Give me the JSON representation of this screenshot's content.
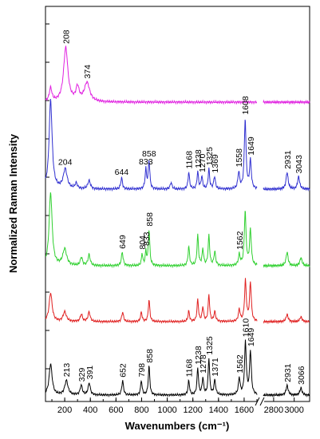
{
  "chart_data": {
    "type": "line",
    "title": "",
    "xlabel": "Wavenumbers (cm⁻¹)",
    "ylabel": "Normalized Raman Intensity",
    "x_ticks_left": [
      "200",
      "400",
      "600",
      "800",
      "1000",
      "1200",
      "1400",
      "1600"
    ],
    "x_ticks_right": [
      "2800",
      "3000"
    ],
    "xlim_left": [
      50,
      1700
    ],
    "xlim_right": [
      2700,
      3150
    ],
    "axis_break": true,
    "y_ticks_shown": false,
    "grid": false,
    "series": [
      {
        "color": "#e020e0",
        "baseline": 0,
        "peaks": [
          {
            "x": 90,
            "h": 0.25,
            "w": 12
          },
          {
            "x": 208,
            "h": 1.0,
            "w": 20
          },
          {
            "x": 300,
            "h": 0.25,
            "w": 15
          },
          {
            "x": 374,
            "h": 0.35,
            "w": 25
          }
        ],
        "labels": [
          {
            "x": 208,
            "text": "208",
            "rot": true
          },
          {
            "x": 374,
            "text": "374",
            "rot": true
          }
        ]
      },
      {
        "color": "#3030d0",
        "baseline": 0,
        "peaks": [
          {
            "x": 90,
            "h": 1.6,
            "w": 14
          },
          {
            "x": 204,
            "h": 0.35,
            "w": 18
          },
          {
            "x": 290,
            "h": 0.1,
            "w": 10
          },
          {
            "x": 390,
            "h": 0.15,
            "w": 12
          },
          {
            "x": 644,
            "h": 0.2,
            "w": 8
          },
          {
            "x": 833,
            "h": 0.35,
            "w": 7
          },
          {
            "x": 858,
            "h": 0.5,
            "w": 7
          },
          {
            "x": 1030,
            "h": 0.12,
            "w": 8
          },
          {
            "x": 1168,
            "h": 0.3,
            "w": 7
          },
          {
            "x": 1238,
            "h": 0.3,
            "w": 7
          },
          {
            "x": 1270,
            "h": 0.22,
            "w": 7
          },
          {
            "x": 1325,
            "h": 0.35,
            "w": 7
          },
          {
            "x": 1369,
            "h": 0.22,
            "w": 8
          },
          {
            "x": 1558,
            "h": 0.3,
            "w": 8
          },
          {
            "x": 1608,
            "h": 1.25,
            "w": 8
          },
          {
            "x": 1649,
            "h": 0.5,
            "w": 8
          },
          {
            "x": 2931,
            "h": 0.3,
            "w": 12
          },
          {
            "x": 3043,
            "h": 0.22,
            "w": 12
          }
        ],
        "labels": [
          {
            "x": 204,
            "text": "204",
            "rot": false
          },
          {
            "x": 644,
            "text": "644",
            "rot": false
          },
          {
            "x": 833,
            "text": "833",
            "rot": false
          },
          {
            "x": 858,
            "text": "858",
            "rot": false
          },
          {
            "x": 1168,
            "text": "1168",
            "rot": true
          },
          {
            "x": 1238,
            "text": "1238",
            "rot": true
          },
          {
            "x": 1270,
            "text": "1270",
            "rot": true
          },
          {
            "x": 1325,
            "text": "1325",
            "rot": true
          },
          {
            "x": 1369,
            "text": "1369",
            "rot": true
          },
          {
            "x": 1558,
            "text": "1558",
            "rot": true
          },
          {
            "x": 1608,
            "text": "1608",
            "rot": true
          },
          {
            "x": 1649,
            "text": "1649",
            "rot": true
          },
          {
            "x": 2931,
            "text": "2931",
            "rot": true
          },
          {
            "x": 3043,
            "text": "3043",
            "rot": true
          }
        ]
      },
      {
        "color": "#30d030",
        "baseline": 0,
        "peaks": [
          {
            "x": 90,
            "h": 1.35,
            "w": 14
          },
          {
            "x": 200,
            "h": 0.3,
            "w": 18
          },
          {
            "x": 330,
            "h": 0.15,
            "w": 10
          },
          {
            "x": 390,
            "h": 0.2,
            "w": 10
          },
          {
            "x": 649,
            "h": 0.25,
            "w": 8
          },
          {
            "x": 804,
            "h": 0.22,
            "w": 6
          },
          {
            "x": 833,
            "h": 0.25,
            "w": 6
          },
          {
            "x": 858,
            "h": 0.65,
            "w": 7
          },
          {
            "x": 1168,
            "h": 0.35,
            "w": 7
          },
          {
            "x": 1238,
            "h": 0.55,
            "w": 7
          },
          {
            "x": 1278,
            "h": 0.3,
            "w": 7
          },
          {
            "x": 1325,
            "h": 0.55,
            "w": 7
          },
          {
            "x": 1371,
            "h": 0.25,
            "w": 8
          },
          {
            "x": 1562,
            "h": 0.2,
            "w": 8
          },
          {
            "x": 1608,
            "h": 1.0,
            "w": 8
          },
          {
            "x": 1649,
            "h": 0.65,
            "w": 8
          },
          {
            "x": 2931,
            "h": 0.25,
            "w": 12
          },
          {
            "x": 3066,
            "h": 0.15,
            "w": 12
          }
        ],
        "labels": [
          {
            "x": 649,
            "text": "649",
            "rot": true
          },
          {
            "x": 804,
            "text": "804",
            "rot": true
          },
          {
            "x": 833,
            "text": "833",
            "rot": true
          },
          {
            "x": 858,
            "text": "858",
            "rot": true
          },
          {
            "x": 1562,
            "text": "1562",
            "rot": true
          }
        ]
      },
      {
        "color": "#e02020",
        "baseline": 0,
        "peaks": [
          {
            "x": 90,
            "h": 0.6,
            "w": 14
          },
          {
            "x": 200,
            "h": 0.2,
            "w": 15
          },
          {
            "x": 330,
            "h": 0.15,
            "w": 10
          },
          {
            "x": 390,
            "h": 0.2,
            "w": 10
          },
          {
            "x": 652,
            "h": 0.2,
            "w": 8
          },
          {
            "x": 798,
            "h": 0.2,
            "w": 7
          },
          {
            "x": 858,
            "h": 0.45,
            "w": 7
          },
          {
            "x": 1168,
            "h": 0.22,
            "w": 7
          },
          {
            "x": 1238,
            "h": 0.45,
            "w": 7
          },
          {
            "x": 1278,
            "h": 0.3,
            "w": 7
          },
          {
            "x": 1325,
            "h": 0.55,
            "w": 7
          },
          {
            "x": 1371,
            "h": 0.2,
            "w": 8
          },
          {
            "x": 1562,
            "h": 0.25,
            "w": 8
          },
          {
            "x": 1610,
            "h": 0.85,
            "w": 8
          },
          {
            "x": 1649,
            "h": 0.8,
            "w": 8
          },
          {
            "x": 2931,
            "h": 0.15,
            "w": 12
          },
          {
            "x": 3066,
            "h": 0.1,
            "w": 12
          }
        ],
        "labels": []
      },
      {
        "color": "#000000",
        "baseline": 0,
        "peaks": [
          {
            "x": 90,
            "h": 0.65,
            "w": 14
          },
          {
            "x": 213,
            "h": 0.3,
            "w": 15
          },
          {
            "x": 329,
            "h": 0.2,
            "w": 10
          },
          {
            "x": 391,
            "h": 0.25,
            "w": 10
          },
          {
            "x": 652,
            "h": 0.3,
            "w": 8
          },
          {
            "x": 798,
            "h": 0.3,
            "w": 7
          },
          {
            "x": 858,
            "h": 0.6,
            "w": 7
          },
          {
            "x": 1168,
            "h": 0.3,
            "w": 7
          },
          {
            "x": 1238,
            "h": 0.55,
            "w": 7
          },
          {
            "x": 1278,
            "h": 0.35,
            "w": 7
          },
          {
            "x": 1325,
            "h": 0.75,
            "w": 7
          },
          {
            "x": 1371,
            "h": 0.3,
            "w": 8
          },
          {
            "x": 1562,
            "h": 0.35,
            "w": 8
          },
          {
            "x": 1610,
            "h": 1.1,
            "w": 8
          },
          {
            "x": 1649,
            "h": 0.9,
            "w": 8
          },
          {
            "x": 2931,
            "h": 0.2,
            "w": 12
          },
          {
            "x": 3066,
            "h": 0.15,
            "w": 12
          }
        ],
        "labels": [
          {
            "x": 213,
            "text": "213",
            "rot": true
          },
          {
            "x": 329,
            "text": "329",
            "rot": true
          },
          {
            "x": 391,
            "text": "391",
            "rot": true
          },
          {
            "x": 652,
            "text": "652",
            "rot": true
          },
          {
            "x": 798,
            "text": "798",
            "rot": true
          },
          {
            "x": 858,
            "text": "858",
            "rot": true
          },
          {
            "x": 1168,
            "text": "1168",
            "rot": true
          },
          {
            "x": 1238,
            "text": "1238",
            "rot": true
          },
          {
            "x": 1278,
            "text": "1278",
            "rot": true
          },
          {
            "x": 1325,
            "text": "1325",
            "rot": true
          },
          {
            "x": 1371,
            "text": "1371",
            "rot": true
          },
          {
            "x": 1562,
            "text": "1562",
            "rot": true
          },
          {
            "x": 1610,
            "text": "1610",
            "rot": true
          },
          {
            "x": 1649,
            "text": "1649",
            "rot": true
          },
          {
            "x": 2931,
            "text": "2931",
            "rot": true
          },
          {
            "x": 3066,
            "text": "3066",
            "rot": true
          }
        ]
      }
    ]
  }
}
